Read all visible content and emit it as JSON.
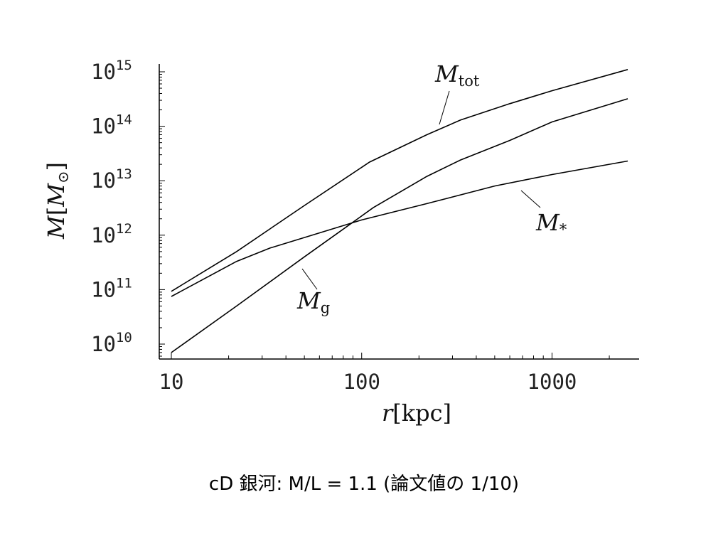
{
  "caption": "cD 銀河: M/L = 1.1 (論文値の 1/10)",
  "chart_data": {
    "type": "line",
    "xscale": "log",
    "yscale": "log",
    "xlim": [
      10,
      2500
    ],
    "ylim": [
      5000000000.0,
      1500000000000000.0
    ],
    "x_ticks": [
      {
        "value": 10,
        "label": "10"
      },
      {
        "value": 100,
        "label": "100"
      },
      {
        "value": 1000,
        "label": "1000"
      }
    ],
    "y_ticks": [
      {
        "value": 10000000000.0,
        "base": "10",
        "exp": "10"
      },
      {
        "value": 100000000000.0,
        "base": "10",
        "exp": "11"
      },
      {
        "value": 1000000000000.0,
        "base": "10",
        "exp": "12"
      },
      {
        "value": 10000000000000.0,
        "base": "10",
        "exp": "13"
      },
      {
        "value": 100000000000000.0,
        "base": "10",
        "exp": "14"
      },
      {
        "value": 1000000000000000.0,
        "base": "10",
        "exp": "15"
      }
    ],
    "xlabel": {
      "var": "r",
      "unit": "[kpc]"
    },
    "ylabel": {
      "var": "M",
      "open": "[",
      "sub_var": "M",
      "sub": "⊙",
      "close": "]"
    },
    "series": [
      {
        "name": "M_tot",
        "label_main": "M",
        "label_sub": "tot",
        "x": [
          10,
          22,
          50,
          110,
          220,
          330,
          600,
          1000,
          2500
        ],
        "y": [
          93000000000.0,
          500000000000.0,
          3500000000000.0,
          22000000000000.0,
          70000000000000.0,
          130000000000000.0,
          260000000000000.0,
          450000000000000.0,
          1100000000000000.0
        ]
      },
      {
        "name": "M_g",
        "label_main": "M",
        "label_sub": "g",
        "x": [
          10,
          22,
          50,
          85,
          115,
          220,
          330,
          600,
          1000,
          2500
        ],
        "y": [
          7000000000.0,
          50000000000.0,
          400000000000.0,
          1500000000000.0,
          3200000000000.0,
          12000000000000.0,
          24000000000000.0,
          55000000000000.0,
          120000000000000.0,
          320000000000000.0
        ]
      },
      {
        "name": "M_*",
        "label_main": "M",
        "label_sub": "*",
        "x": [
          10,
          22,
          33,
          60,
          100,
          220,
          500,
          1000,
          2500
        ],
        "y": [
          75000000000.0,
          330000000000.0,
          580000000000.0,
          1100000000000.0,
          1900000000000.0,
          3800000000000.0,
          8000000000000.0,
          13000000000000.0,
          23000000000000.0
        ]
      }
    ],
    "grid": false,
    "legend": "none"
  }
}
